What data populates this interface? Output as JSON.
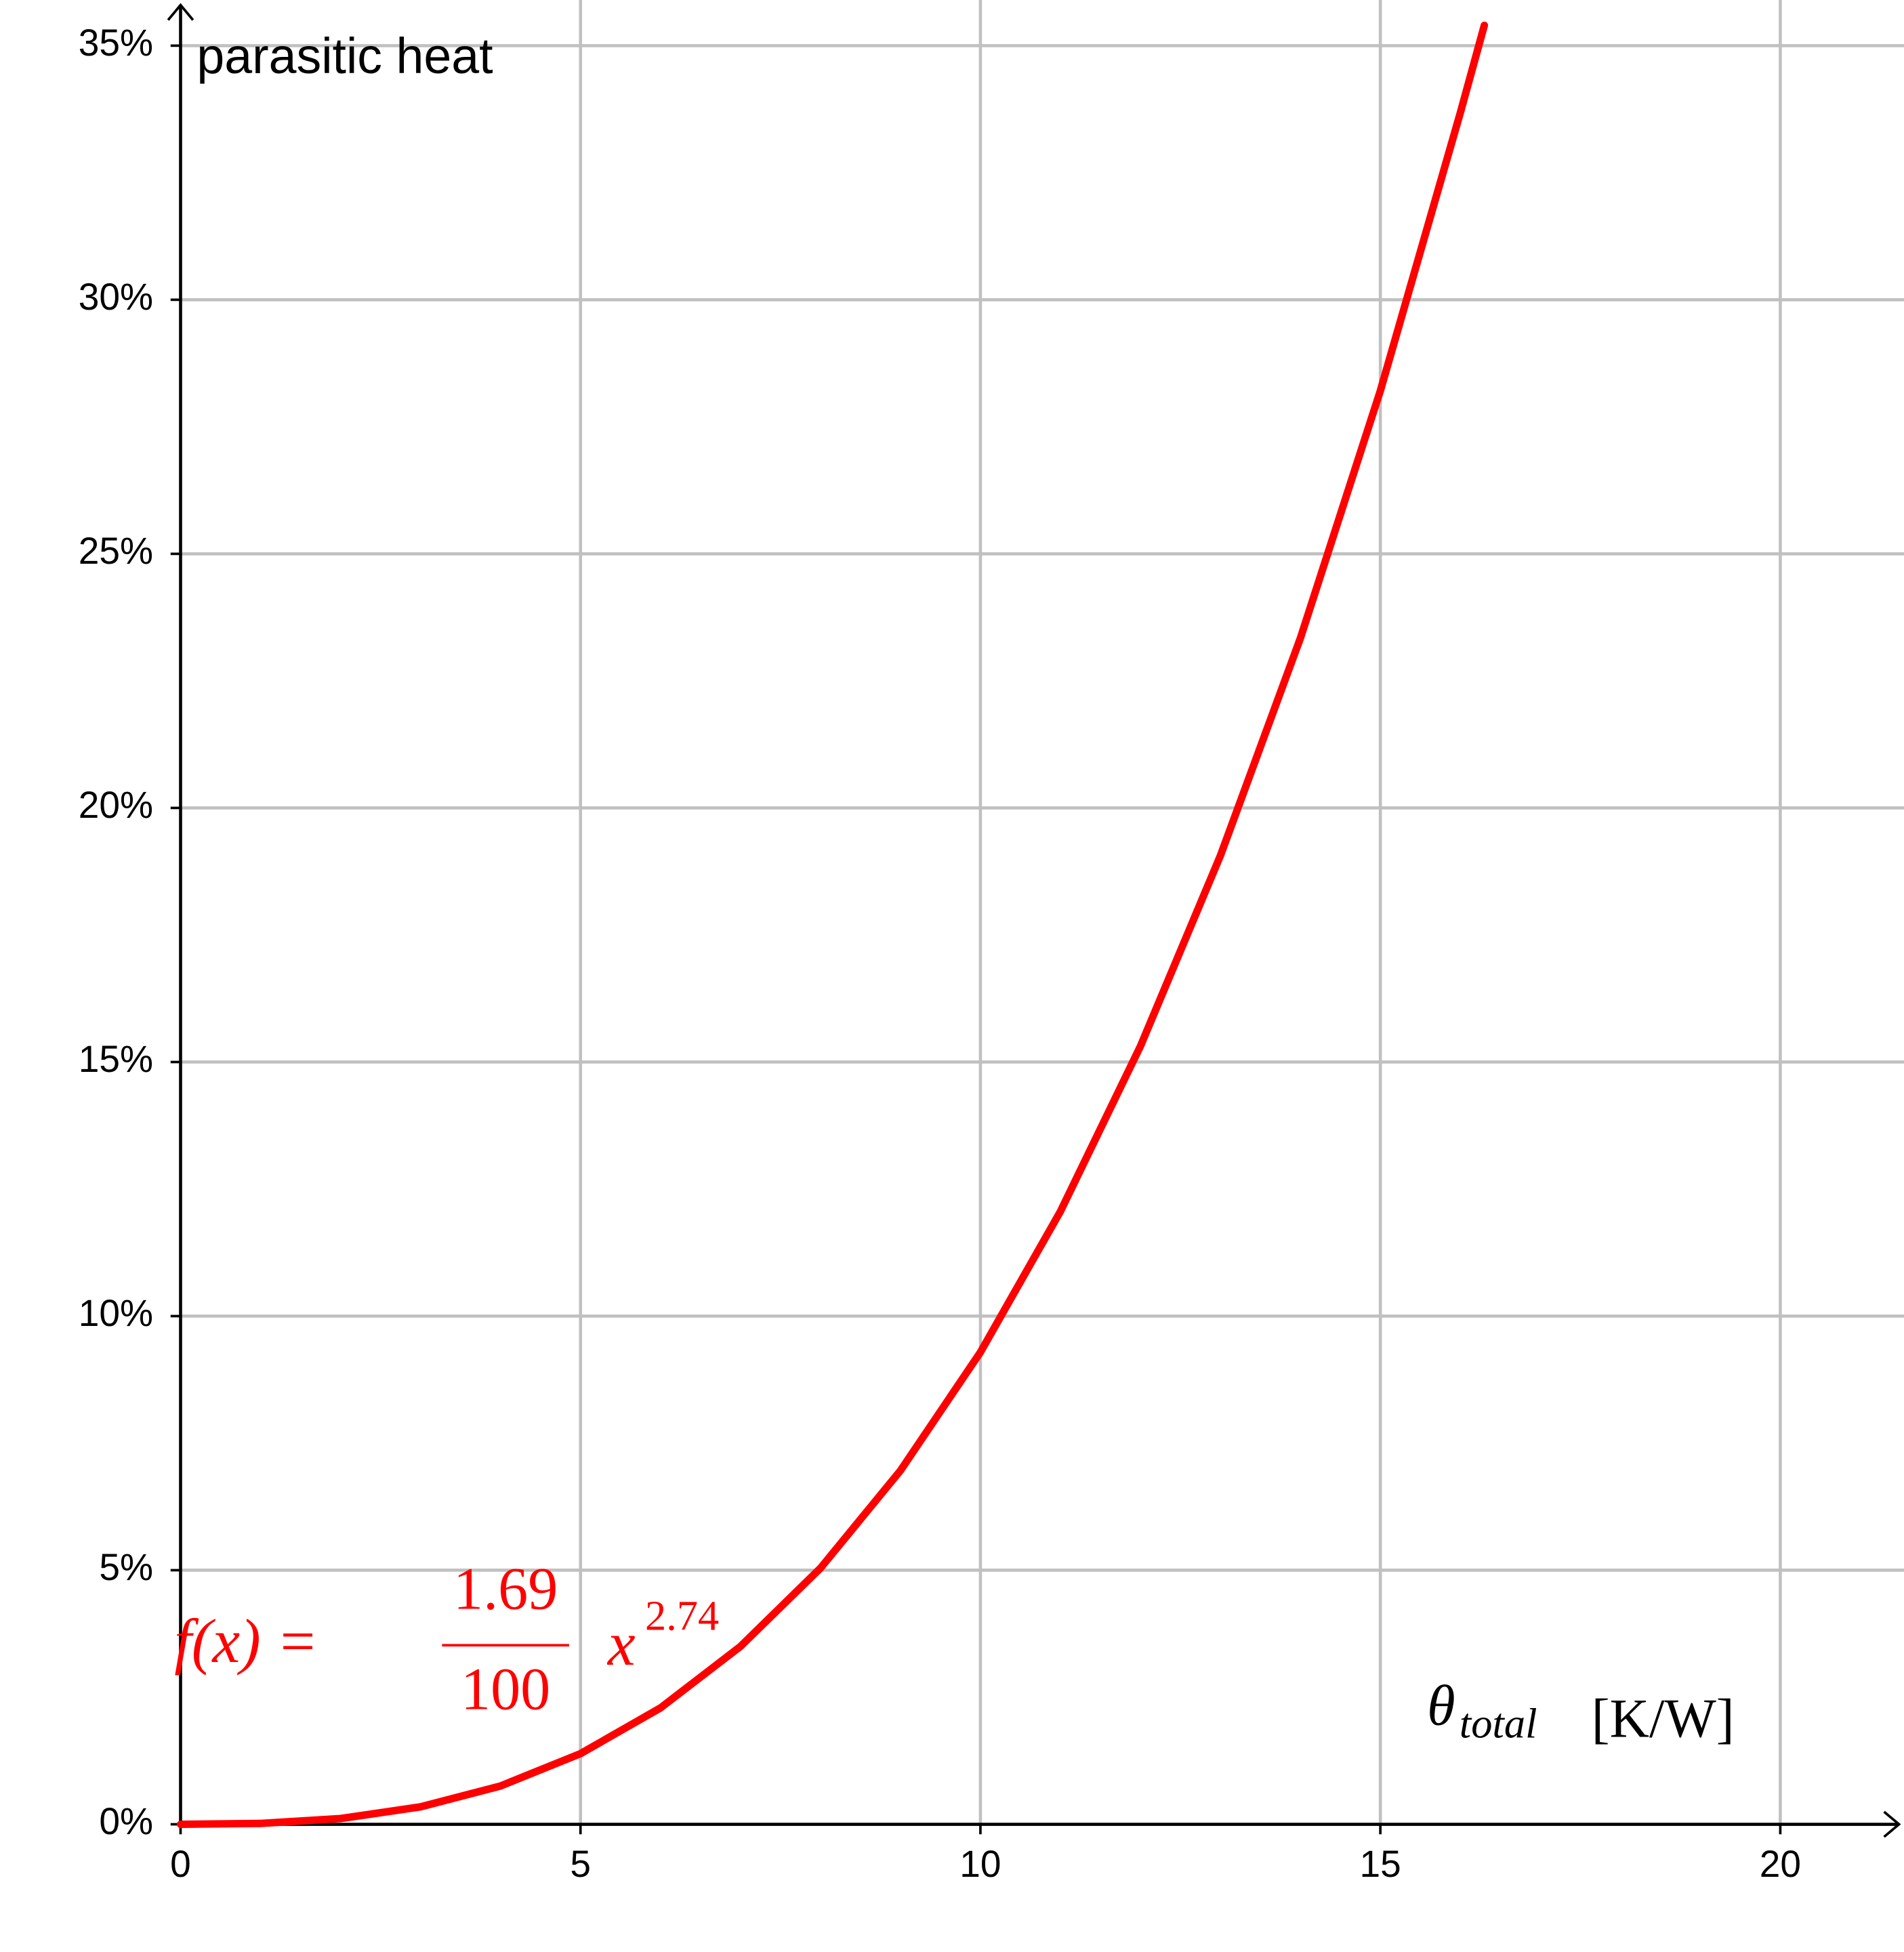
{
  "chart_data": {
    "type": "line",
    "y_label": "parasitic heat",
    "x_label": {
      "symbol": "θ",
      "subscript": "total",
      "unit": "[K/W]"
    },
    "annotation": {
      "lhs": "f(x) =",
      "numerator": "1.69",
      "denominator": "100",
      "base": "x",
      "exponent": "2.74"
    },
    "x": [
      0,
      1,
      2,
      3,
      4,
      5,
      6,
      7,
      8,
      9,
      10,
      11,
      12,
      13,
      14,
      15,
      16,
      16.3
    ],
    "series": [
      {
        "color": "#ff0000",
        "values": [
          0,
          0.0169,
          0.113,
          0.343,
          0.754,
          1.39,
          2.29,
          3.5,
          5.04,
          6.96,
          9.29,
          12.06,
          15.31,
          19.06,
          23.34,
          28.21,
          33.68,
          35.4
        ]
      }
    ],
    "xlim": [
      0,
      21.5
    ],
    "ylim": [
      0,
      35.8
    ],
    "xticks": [
      0,
      5,
      10,
      15,
      20
    ],
    "yticks": [
      {
        "value": 0,
        "label": "0%"
      },
      {
        "value": 5,
        "label": "5%"
      },
      {
        "value": 10,
        "label": "10%"
      },
      {
        "value": 15,
        "label": "15%"
      },
      {
        "value": 20,
        "label": "20%"
      },
      {
        "value": 25,
        "label": "25%"
      },
      {
        "value": 30,
        "label": "30%"
      },
      {
        "value": 35,
        "label": "35%"
      }
    ],
    "grid": true
  }
}
